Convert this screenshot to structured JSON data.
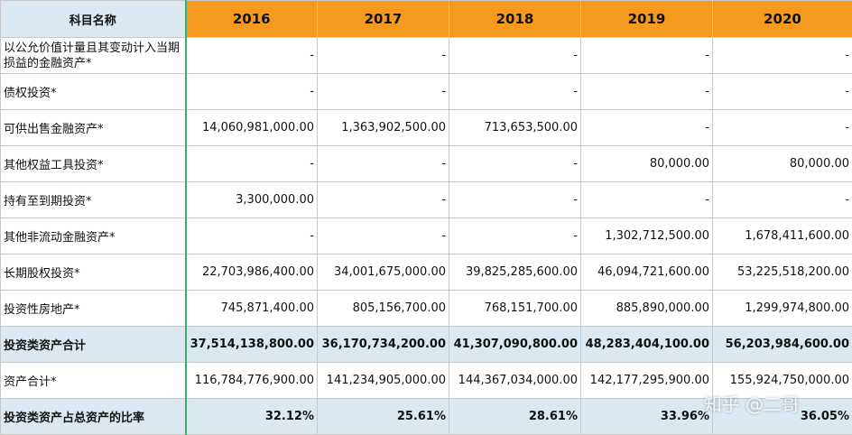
{
  "header": {
    "label": "科目名称",
    "years": [
      "2016",
      "2017",
      "2018",
      "2019",
      "2020"
    ]
  },
  "rows": [
    {
      "label": "以公允价值计量且其变动计入当期损益的金融资产*",
      "values": [
        "-",
        "-",
        "-",
        "-",
        "-"
      ],
      "highlight": false,
      "wrap": true
    },
    {
      "label": "债权投资*",
      "values": [
        "-",
        "-",
        "-",
        "-",
        "-"
      ],
      "highlight": false
    },
    {
      "label": "可供出售金融资产*",
      "values": [
        "14,060,981,000.00",
        "1,363,902,500.00",
        "713,653,500.00",
        "-",
        "-"
      ],
      "highlight": false
    },
    {
      "label": "其他权益工具投资*",
      "values": [
        "-",
        "-",
        "-",
        "80,000.00",
        "80,000.00"
      ],
      "highlight": false
    },
    {
      "label": "持有至到期投资*",
      "values": [
        "3,300,000.00",
        "-",
        "-",
        "-",
        "-"
      ],
      "highlight": false
    },
    {
      "label": "其他非流动金融资产*",
      "values": [
        "-",
        "-",
        "-",
        "1,302,712,500.00",
        "1,678,411,600.00"
      ],
      "highlight": false
    },
    {
      "label": "长期股权投资*",
      "values": [
        "22,703,986,400.00",
        "34,001,675,000.00",
        "39,825,285,600.00",
        "46,094,721,600.00",
        "53,225,518,200.00"
      ],
      "highlight": false
    },
    {
      "label": "投资性房地产*",
      "values": [
        "745,871,400.00",
        "805,156,700.00",
        "768,151,700.00",
        "885,890,000.00",
        "1,299,974,800.00"
      ],
      "highlight": false
    },
    {
      "label": "投资类资产合计",
      "values": [
        "37,514,138,800.00",
        "36,170,734,200.00",
        "41,307,090,800.00",
        "48,283,404,100.00",
        "56,203,984,600.00"
      ],
      "highlight": true
    },
    {
      "label": "资产合计*",
      "values": [
        "116,784,776,900.00",
        "141,234,905,000.00",
        "144,367,034,000.00",
        "142,177,295,900.00",
        "155,924,750,000.00"
      ],
      "highlight": false
    },
    {
      "label": "投资类资产占总资产的比率",
      "values": [
        "32.12%",
        "25.61%",
        "28.61%",
        "33.96%",
        "36.05%"
      ],
      "highlight": true
    }
  ],
  "watermark": "知乎 @二哥",
  "colors": {
    "header_year_bg": "#f59a1f",
    "header_label_bg": "#d9e8f1",
    "highlight_row_bg": "#d9e8f1",
    "divider": "#3aae6f"
  }
}
